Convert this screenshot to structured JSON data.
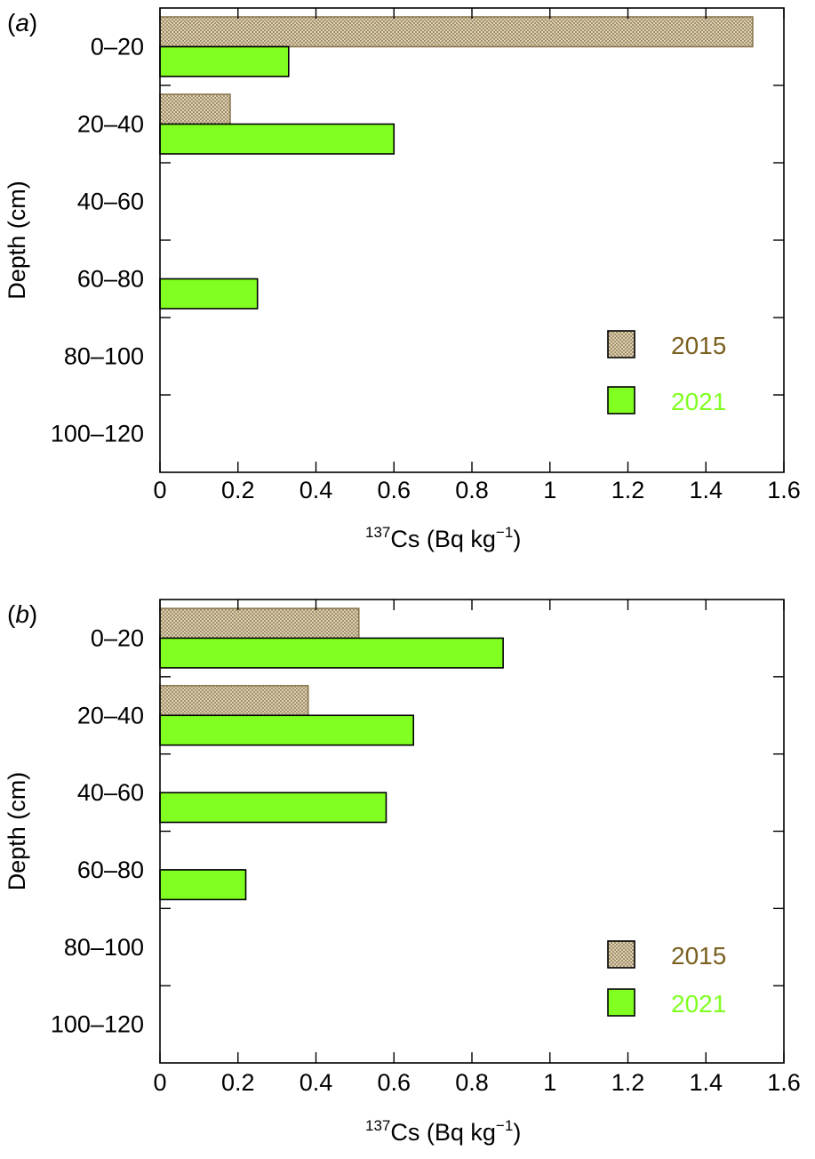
{
  "chart_data": [
    {
      "panel_label": "a",
      "type": "bar",
      "orientation": "horizontal",
      "categories": [
        "0–20",
        "20–40",
        "40–60",
        "60–80",
        "80–100",
        "100–120"
      ],
      "series": [
        {
          "name": "2015",
          "values": [
            1.52,
            0.18,
            null,
            null,
            null,
            null
          ]
        },
        {
          "name": "2021",
          "values": [
            0.33,
            0.6,
            null,
            0.25,
            null,
            null
          ]
        }
      ],
      "xlabel_sup": "137",
      "xlabel_main": "Cs (Bq kg",
      "xlabel_exp": "−1",
      "xlabel_close": ")",
      "ylabel": "Depth (cm)",
      "xlim": [
        0,
        1.6
      ],
      "xticks": [
        "0",
        "0.2",
        "0.4",
        "0.6",
        "0.8",
        "1",
        "1.2",
        "1.4",
        "1.6"
      ],
      "legend_position": "lower-right",
      "grid": false
    },
    {
      "panel_label": "b",
      "type": "bar",
      "orientation": "horizontal",
      "categories": [
        "0–20",
        "20–40",
        "40–60",
        "60–80",
        "80–100",
        "100–120"
      ],
      "series": [
        {
          "name": "2015",
          "values": [
            0.51,
            0.38,
            null,
            null,
            null,
            null
          ]
        },
        {
          "name": "2021",
          "values": [
            0.88,
            0.65,
            0.58,
            0.22,
            null,
            null
          ]
        }
      ],
      "xlabel_sup": "137",
      "xlabel_main": "Cs (Bq kg",
      "xlabel_exp": "−1",
      "xlabel_close": ")",
      "ylabel": "Depth (cm)",
      "xlim": [
        0,
        1.6
      ],
      "xticks": [
        "0",
        "0.2",
        "0.4",
        "0.6",
        "0.8",
        "1",
        "1.2",
        "1.4",
        "1.6"
      ],
      "legend_position": "lower-right",
      "grid": false
    }
  ],
  "colors": {
    "s2015_fill": "#e9dcc0",
    "s2015_stroke": "#8a7850",
    "s2015_legend_text": "#7a6020",
    "s2021_fill": "#80ff20",
    "s2021_legend_text": "#80ff20",
    "axis": "#000000"
  }
}
